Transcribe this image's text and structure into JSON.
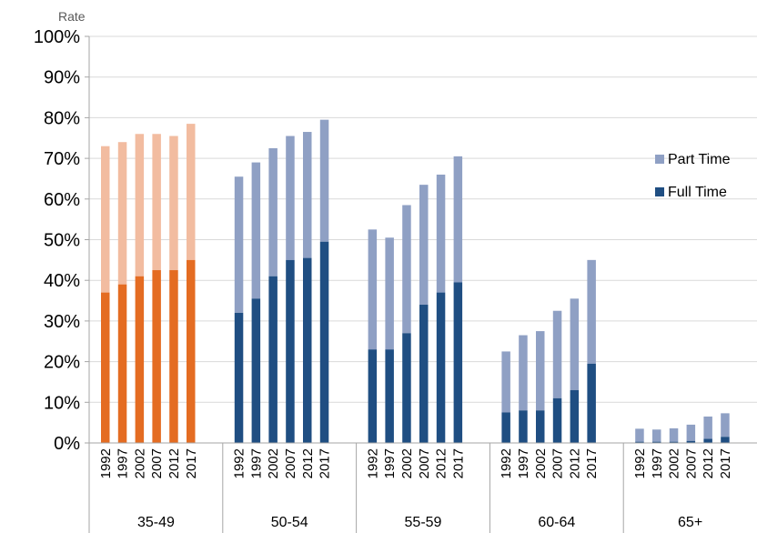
{
  "chart_data": {
    "type": "bar",
    "stacked": true,
    "ylabel": "Rate",
    "ylim": [
      0,
      100
    ],
    "yticks": [
      "0%",
      "10%",
      "20%",
      "30%",
      "40%",
      "50%",
      "60%",
      "70%",
      "80%",
      "90%",
      "100%"
    ],
    "years": [
      "1992",
      "1997",
      "2002",
      "2007",
      "2012",
      "2017"
    ],
    "groups": [
      {
        "label": "35-49",
        "full_time": [
          37,
          39,
          41,
          42.5,
          42.5,
          45
        ],
        "part_time": [
          36,
          35,
          35,
          33.5,
          33,
          33.5
        ],
        "colors": {
          "full": "#E46C22",
          "part": "#F2BCA0"
        }
      },
      {
        "label": "50-54",
        "full_time": [
          32,
          35.5,
          41,
          45,
          45.5,
          49.5
        ],
        "part_time": [
          33.5,
          33.5,
          31.5,
          30.5,
          31,
          30
        ],
        "colors": {
          "full": "#1F4E82",
          "part": "#8FA0C4"
        }
      },
      {
        "label": "55-59",
        "full_time": [
          23,
          23,
          27,
          34,
          37,
          39.5
        ],
        "part_time": [
          29.5,
          27.5,
          31.5,
          29.5,
          29,
          31
        ],
        "colors": {
          "full": "#1F4E82",
          "part": "#8FA0C4"
        }
      },
      {
        "label": "60-64",
        "full_time": [
          7.5,
          8,
          8,
          11,
          13,
          19.5
        ],
        "part_time": [
          15,
          18.5,
          19.5,
          21.5,
          22.5,
          25.5
        ],
        "colors": {
          "full": "#1F4E82",
          "part": "#8FA0C4"
        }
      },
      {
        "label": "65+",
        "full_time": [
          0.3,
          0.3,
          0.3,
          0.5,
          1,
          1.5
        ],
        "part_time": [
          3.2,
          3,
          3.3,
          4,
          5.5,
          5.8
        ],
        "colors": {
          "full": "#1F4E82",
          "part": "#8FA0C4"
        }
      }
    ],
    "legend": {
      "position": "right",
      "entries": [
        {
          "name": "Part Time",
          "color": "#8FA0C4"
        },
        {
          "name": "Full Time",
          "color": "#1F4E82"
        }
      ]
    },
    "grid": true
  }
}
